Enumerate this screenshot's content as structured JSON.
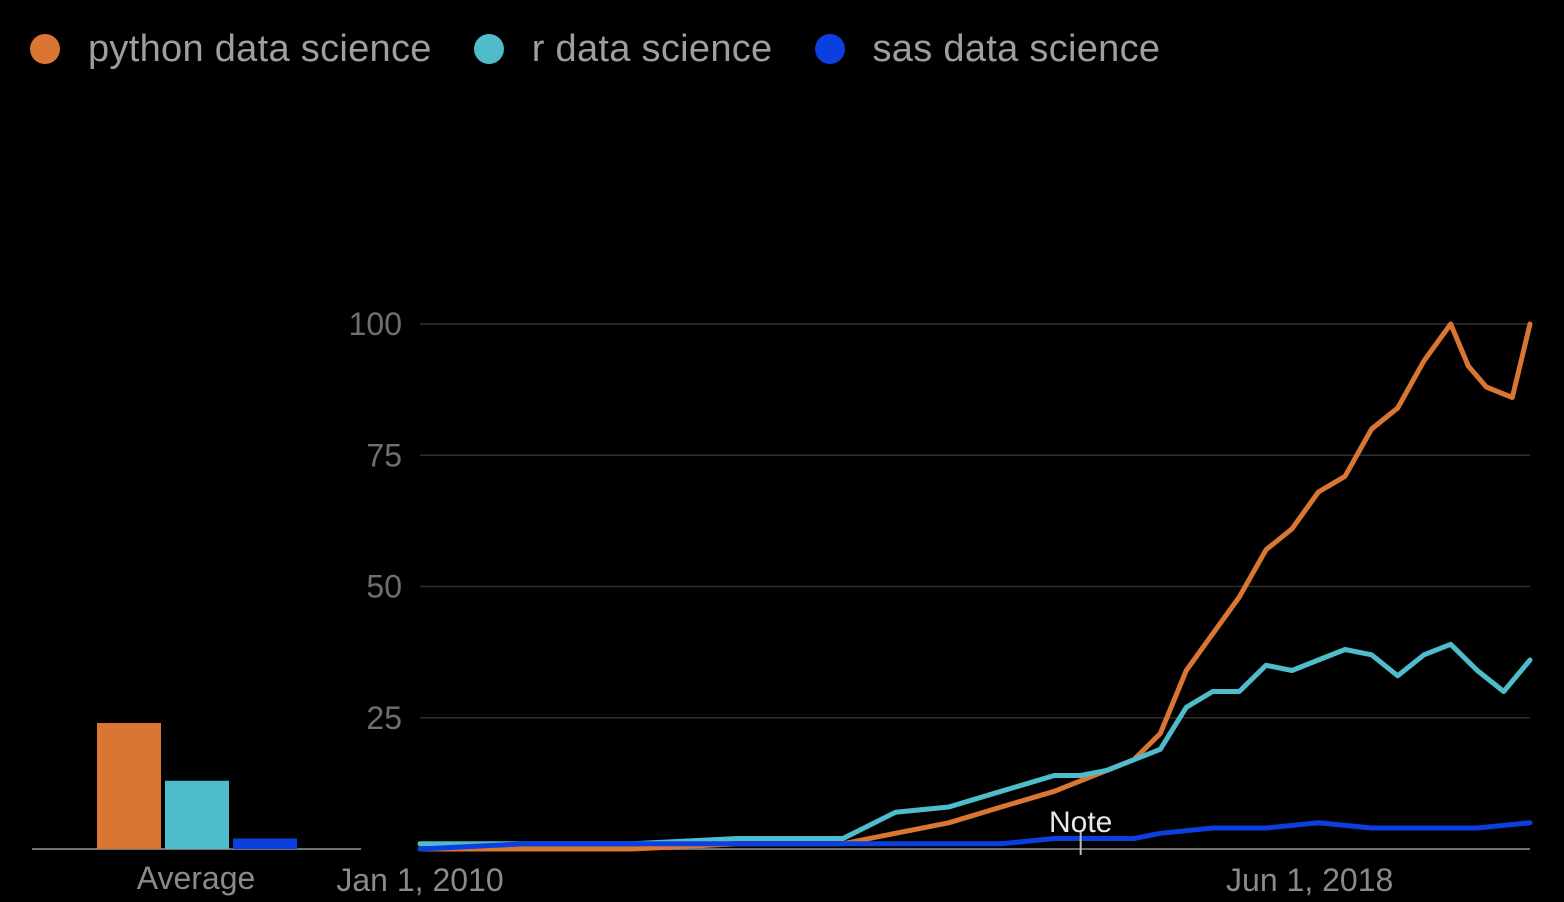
{
  "legend": [
    {
      "label": "python data science",
      "color": "#d97634"
    },
    {
      "label": "r data science",
      "color": "#4fbccc"
    },
    {
      "label": "sas data science",
      "color": "#0b3fe0"
    }
  ],
  "annotation": "Note",
  "chart_data": {
    "type": "line",
    "x_date_range": [
      "2010-01-01",
      "2020-07-01"
    ],
    "x_tick_labels": [
      "Jan 1, 2010",
      "Jun 1, 2018"
    ],
    "x_tick_dates": [
      "2010-01-01",
      "2018-06-01"
    ],
    "y_ticks": [
      25,
      50,
      75,
      100
    ],
    "ylim": [
      0,
      100
    ],
    "grid": true,
    "legend_position": "top-left",
    "annotation": {
      "label": "Note",
      "date": "2016-04-01"
    },
    "series": [
      {
        "name": "python data science",
        "color": "#d97634",
        "points": [
          [
            "2010-01-01",
            0
          ],
          [
            "2011-01-01",
            0
          ],
          [
            "2012-01-01",
            0
          ],
          [
            "2013-01-01",
            1
          ],
          [
            "2014-01-01",
            1
          ],
          [
            "2014-07-01",
            3
          ],
          [
            "2015-01-01",
            5
          ],
          [
            "2015-07-01",
            8
          ],
          [
            "2016-01-01",
            11
          ],
          [
            "2016-04-01",
            13
          ],
          [
            "2016-07-01",
            15
          ],
          [
            "2016-10-01",
            17
          ],
          [
            "2017-01-01",
            22
          ],
          [
            "2017-04-01",
            34
          ],
          [
            "2017-07-01",
            41
          ],
          [
            "2017-10-01",
            48
          ],
          [
            "2018-01-01",
            57
          ],
          [
            "2018-04-01",
            61
          ],
          [
            "2018-07-01",
            68
          ],
          [
            "2018-10-01",
            71
          ],
          [
            "2019-01-01",
            80
          ],
          [
            "2019-04-01",
            84
          ],
          [
            "2019-07-01",
            93
          ],
          [
            "2019-10-01",
            100
          ],
          [
            "2019-12-01",
            92
          ],
          [
            "2020-02-01",
            88
          ],
          [
            "2020-05-01",
            86
          ],
          [
            "2020-07-01",
            100
          ]
        ]
      },
      {
        "name": "r data science",
        "color": "#4fbccc",
        "points": [
          [
            "2010-01-01",
            1
          ],
          [
            "2011-01-01",
            1
          ],
          [
            "2012-01-01",
            1
          ],
          [
            "2013-01-01",
            2
          ],
          [
            "2014-01-01",
            2
          ],
          [
            "2014-07-01",
            7
          ],
          [
            "2015-01-01",
            8
          ],
          [
            "2015-07-01",
            11
          ],
          [
            "2016-01-01",
            14
          ],
          [
            "2016-04-01",
            14
          ],
          [
            "2016-07-01",
            15
          ],
          [
            "2016-10-01",
            17
          ],
          [
            "2017-01-01",
            19
          ],
          [
            "2017-04-01",
            27
          ],
          [
            "2017-07-01",
            30
          ],
          [
            "2017-10-01",
            30
          ],
          [
            "2018-01-01",
            35
          ],
          [
            "2018-04-01",
            34
          ],
          [
            "2018-07-01",
            36
          ],
          [
            "2018-10-01",
            38
          ],
          [
            "2019-01-01",
            37
          ],
          [
            "2019-04-01",
            33
          ],
          [
            "2019-07-01",
            37
          ],
          [
            "2019-10-01",
            39
          ],
          [
            "2020-01-01",
            34
          ],
          [
            "2020-04-01",
            30
          ],
          [
            "2020-07-01",
            36
          ]
        ]
      },
      {
        "name": "sas data science",
        "color": "#0b3fe0",
        "points": [
          [
            "2010-01-01",
            0
          ],
          [
            "2011-01-01",
            1
          ],
          [
            "2012-01-01",
            1
          ],
          [
            "2013-01-01",
            1
          ],
          [
            "2014-01-01",
            1
          ],
          [
            "2015-01-01",
            1
          ],
          [
            "2015-07-01",
            1
          ],
          [
            "2016-01-01",
            2
          ],
          [
            "2016-04-01",
            2
          ],
          [
            "2016-10-01",
            2
          ],
          [
            "2017-01-01",
            3
          ],
          [
            "2017-07-01",
            4
          ],
          [
            "2018-01-01",
            4
          ],
          [
            "2018-07-01",
            5
          ],
          [
            "2019-01-01",
            4
          ],
          [
            "2019-07-01",
            4
          ],
          [
            "2020-01-01",
            4
          ],
          [
            "2020-07-01",
            5
          ]
        ]
      }
    ],
    "average_bars": {
      "label": "Average",
      "bars": [
        {
          "name": "python data science",
          "value": 24,
          "color": "#d97634"
        },
        {
          "name": "r data science",
          "value": 13,
          "color": "#4fbccc"
        },
        {
          "name": "sas data science",
          "value": 2,
          "color": "#0b3fe0"
        }
      ]
    }
  }
}
